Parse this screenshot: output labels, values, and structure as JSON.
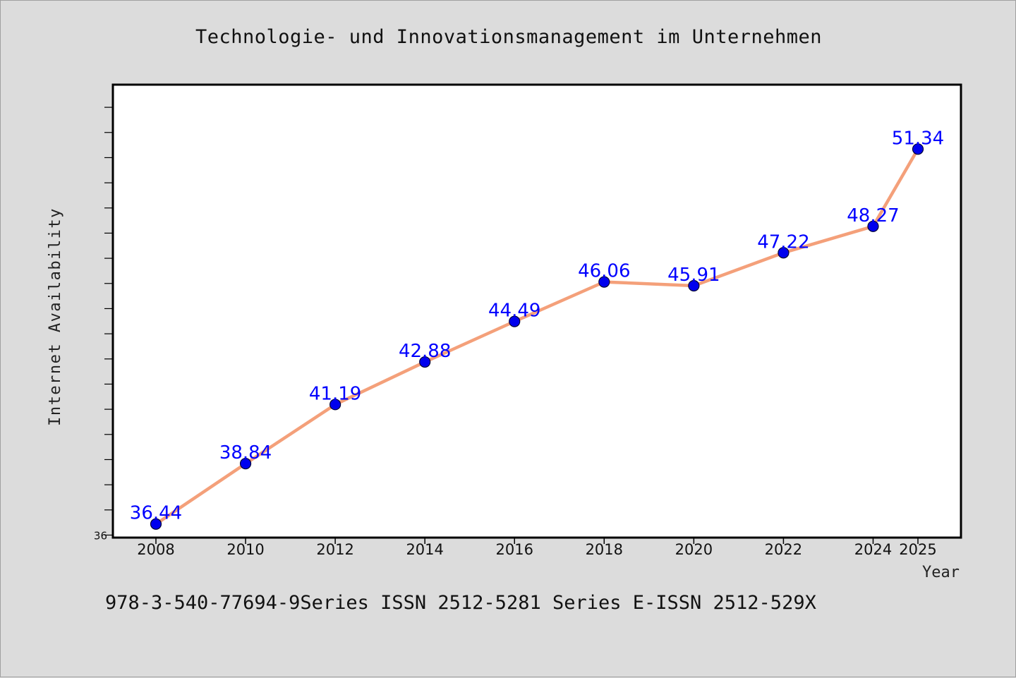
{
  "chart_data": {
    "type": "line",
    "title": "Technologie- und Innovationsmanagement im Unternehmen",
    "xlabel": "Year",
    "ylabel": "Internet Availability",
    "x": [
      "2008",
      "2010",
      "2012",
      "2014",
      "2016",
      "2018",
      "2020",
      "2022",
      "2024",
      "2025"
    ],
    "values": [
      36.44,
      38.84,
      41.19,
      42.88,
      44.49,
      46.06,
      45.91,
      47.22,
      48.27,
      51.34
    ],
    "data_labels": [
      "36.44",
      "38.84",
      "41.19",
      "42.88",
      "44.49",
      "46.06",
      "45.91",
      "47.22",
      "48.27",
      "51.34"
    ],
    "y_tick_labels": [
      "36"
    ],
    "ylim": [
      35.9,
      53.9
    ],
    "grid": false,
    "legend": "none",
    "colors": {
      "line": "#f4a07a",
      "marker": "#0000ee",
      "marker_edge": "#000033",
      "label": "#0000ff"
    }
  },
  "footer": "978-3-540-77694-9Series ISSN 2512-5281 Series E-ISSN 2512-529X"
}
